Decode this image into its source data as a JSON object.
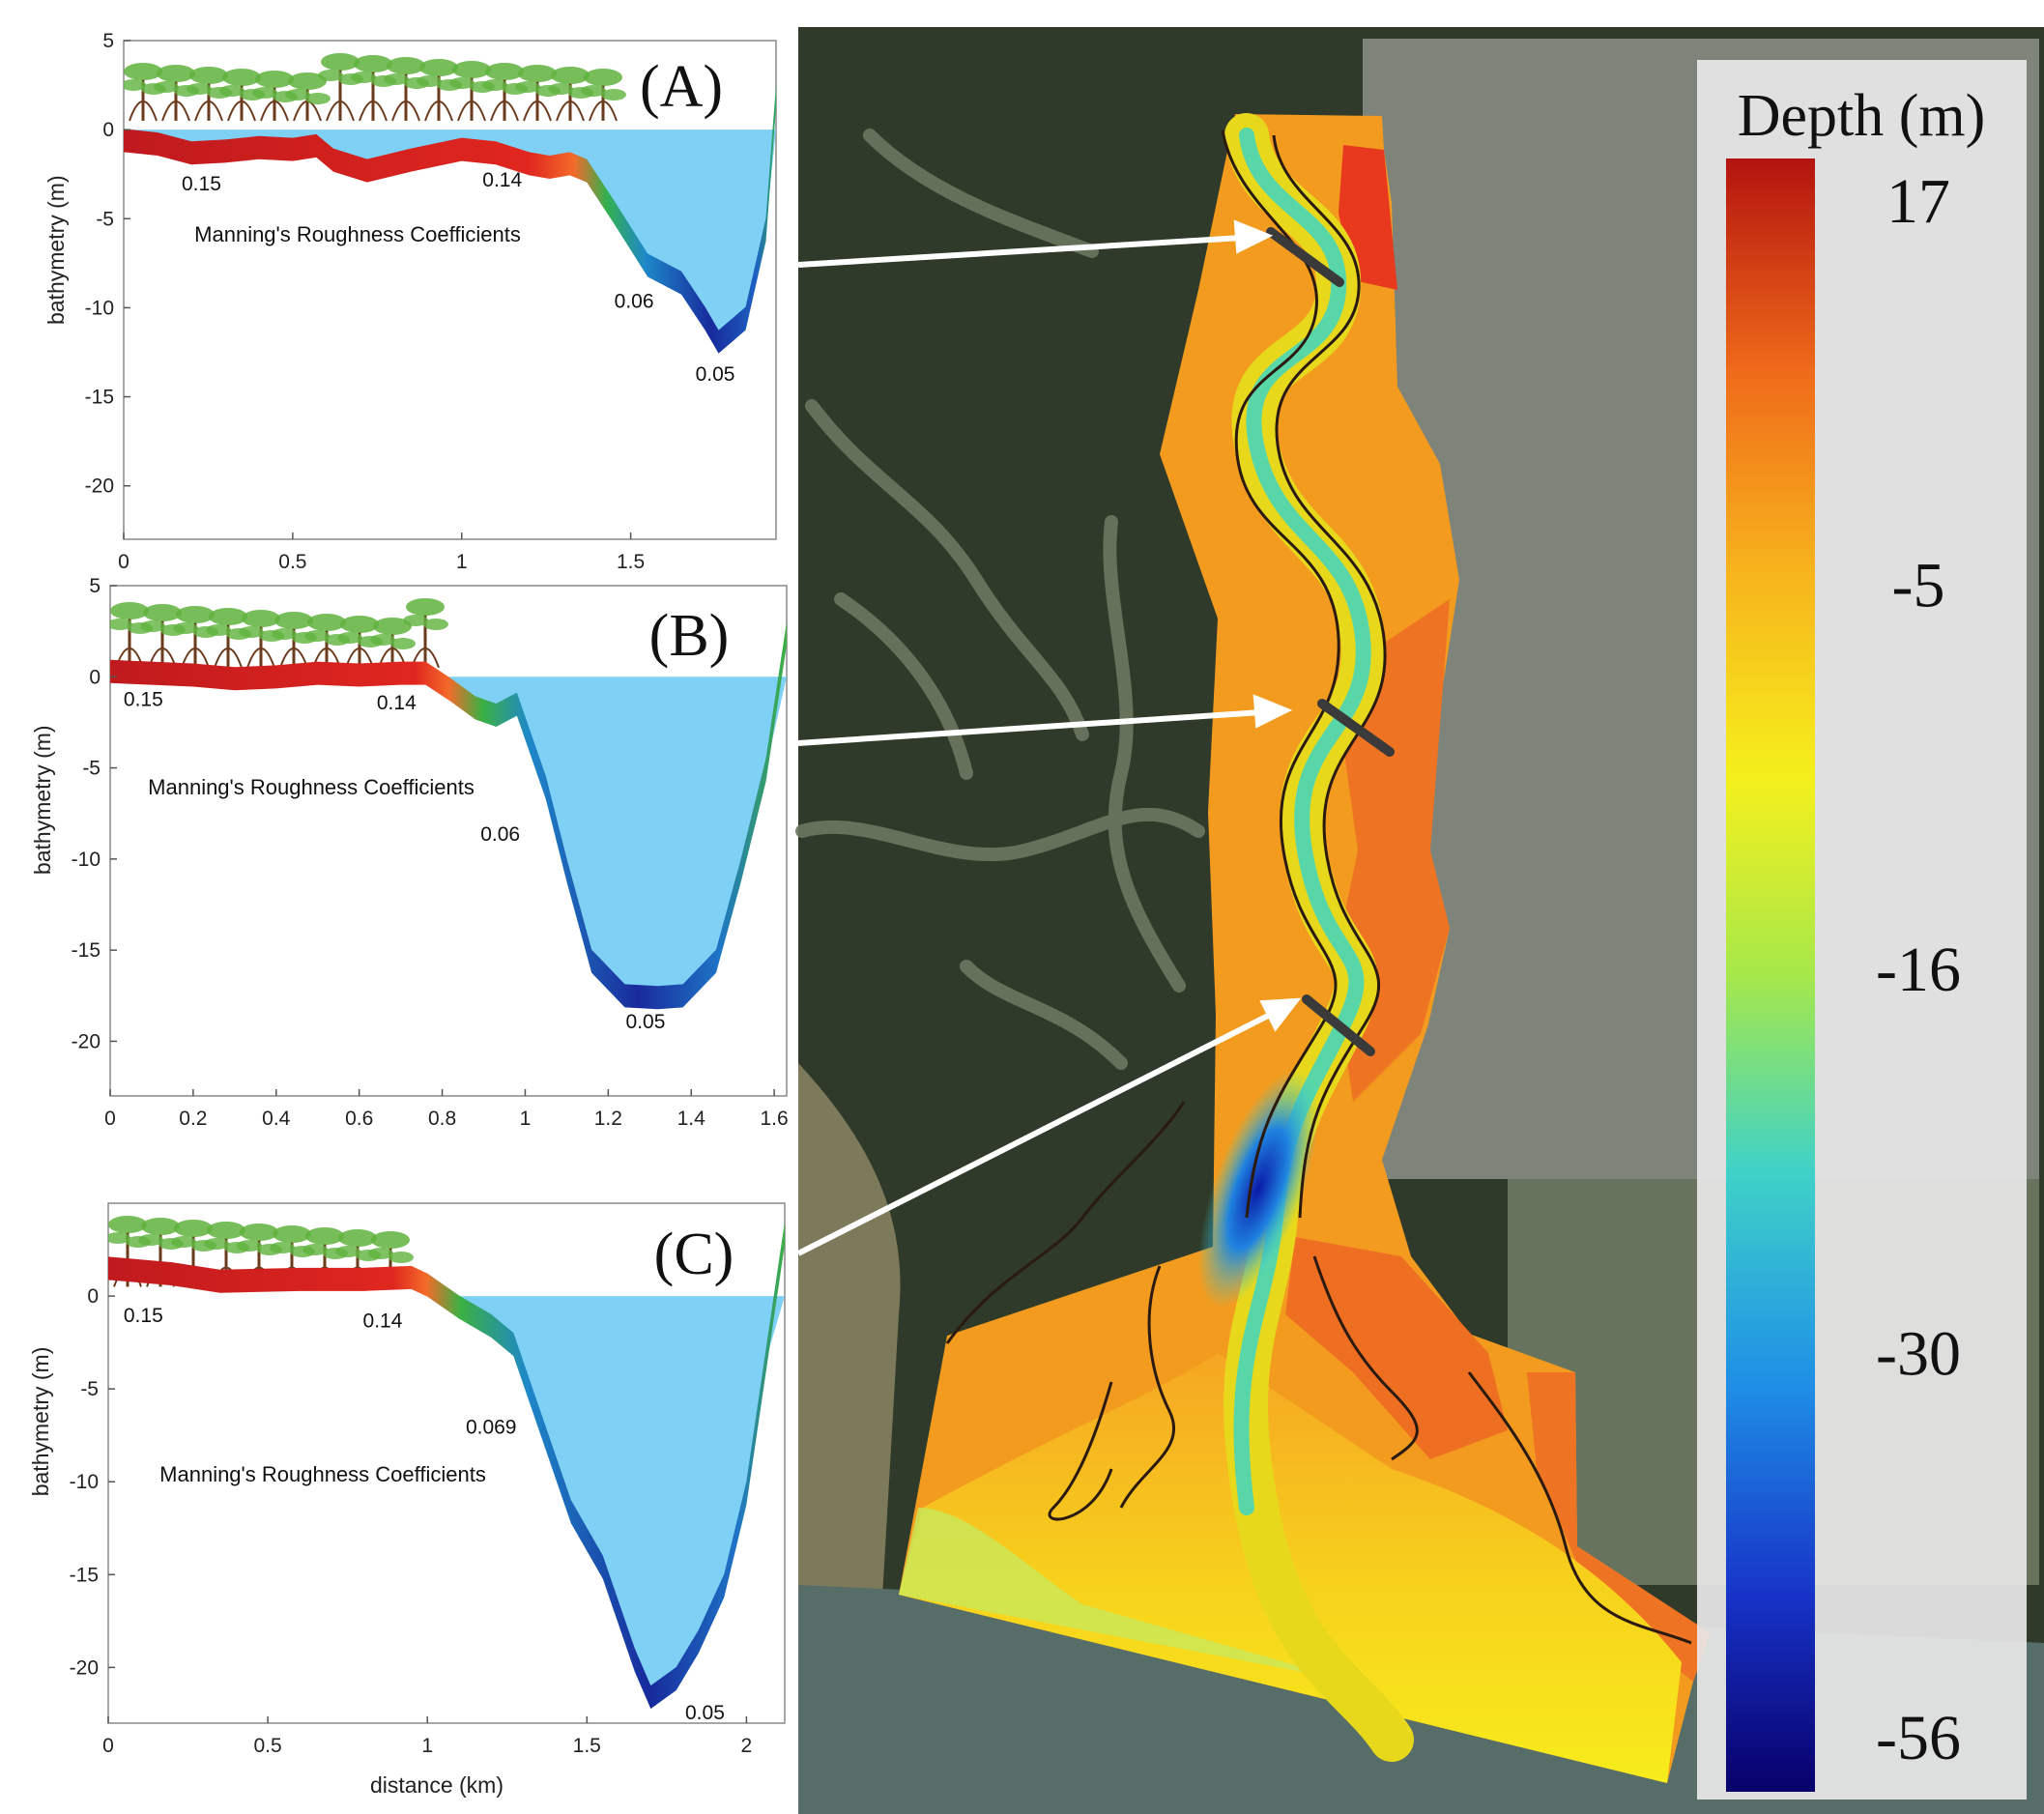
{
  "chart_data": [
    {
      "type": "area",
      "panel_label": "(A)",
      "ylabel": "bathymetry (m)",
      "xlabel": "",
      "annotation": "Manning's Roughness Coefficients",
      "xlim": [
        0,
        1.93
      ],
      "ylim": [
        -23,
        5
      ],
      "xticks": [
        0,
        0.5,
        1,
        1.5
      ],
      "xtick_labels": [
        "0",
        "0.5",
        "1",
        "1.5"
      ],
      "yticks": [
        5,
        0,
        -5,
        -10,
        -15,
        -20
      ],
      "ytick_labels": [
        "5",
        "0",
        "-5",
        "-10",
        "-15",
        "-20"
      ],
      "water_level": 0,
      "profile_x": [
        0,
        0.1,
        0.2,
        0.3,
        0.4,
        0.5,
        0.57,
        0.62,
        0.72,
        0.85,
        1.0,
        1.1,
        1.2,
        1.26,
        1.32,
        1.37,
        1.45,
        1.55,
        1.65,
        1.72,
        1.76,
        1.84,
        1.9,
        1.93
      ],
      "profile_y": [
        -0.5,
        -0.7,
        -1.2,
        -1.1,
        -0.9,
        -1.0,
        -0.8,
        -1.6,
        -2.2,
        -1.6,
        -1.0,
        -1.2,
        -1.8,
        -2.0,
        -1.8,
        -2.2,
        -4.5,
        -7.5,
        -8.5,
        -10.5,
        -11.8,
        -10.5,
        -5.5,
        2.0
      ],
      "coefficients": [
        {
          "label": "0.15",
          "x": 0.23,
          "y": -3.4
        },
        {
          "label": "0.14",
          "x": 1.12,
          "y": -3.2
        },
        {
          "label": "0.06",
          "x": 1.51,
          "y": -10.0
        },
        {
          "label": "0.05",
          "x": 1.75,
          "y": -14.1
        }
      ]
    },
    {
      "type": "area",
      "panel_label": "(B)",
      "ylabel": "bathymetry (m)",
      "xlabel": "",
      "annotation": "Manning's Roughness Coefficients",
      "xlim": [
        0,
        1.63
      ],
      "ylim": [
        -23,
        5
      ],
      "xticks": [
        0,
        0.2,
        0.4,
        0.6,
        0.8,
        1,
        1.2,
        1.4,
        1.6
      ],
      "xtick_labels": [
        "0",
        "0.2",
        "0.4",
        "0.6",
        "0.8",
        "1",
        "1.2",
        "1.4",
        "1.6"
      ],
      "yticks": [
        5,
        0,
        -5,
        -10,
        -15,
        -20
      ],
      "ytick_labels": [
        "5",
        "0",
        "-5",
        "-10",
        "-15",
        "-20"
      ],
      "water_level": 0,
      "profile_x": [
        0,
        0.1,
        0.2,
        0.3,
        0.4,
        0.5,
        0.6,
        0.7,
        0.76,
        0.82,
        0.88,
        0.93,
        0.98,
        1.05,
        1.1,
        1.16,
        1.24,
        1.32,
        1.38,
        1.46,
        1.52,
        1.58,
        1.63
      ],
      "profile_y": [
        0.4,
        0.3,
        0.2,
        0.0,
        0.1,
        0.3,
        0.2,
        0.3,
        0.3,
        -0.6,
        -1.6,
        -2.0,
        -1.4,
        -6.0,
        -10.5,
        -15.5,
        -17.4,
        -17.5,
        -17.4,
        -15.5,
        -10.5,
        -5.0,
        2.5
      ],
      "coefficients": [
        {
          "label": "0.15",
          "x": 0.08,
          "y": -1.6
        },
        {
          "label": "0.14",
          "x": 0.69,
          "y": -1.8
        },
        {
          "label": "0.06",
          "x": 0.94,
          "y": -9.0
        },
        {
          "label": "0.05",
          "x": 1.29,
          "y": -19.3
        }
      ]
    },
    {
      "type": "area",
      "panel_label": "(C)",
      "ylabel": "bathymetry (m)",
      "xlabel": "distance (km)",
      "annotation": "Manning's Roughness Coefficients",
      "xlim": [
        0,
        2.12
      ],
      "ylim": [
        -23,
        5
      ],
      "xticks": [
        0,
        0.5,
        1,
        1.5,
        2
      ],
      "xtick_labels": [
        "0",
        "0.5",
        "1",
        "1.5",
        "2"
      ],
      "yticks": [
        0,
        -5,
        -10,
        -15,
        -20
      ],
      "ytick_labels": [
        "0",
        "-5",
        "-10",
        "-15",
        "-20"
      ],
      "water_level": 0,
      "profile_x": [
        0,
        0.2,
        0.35,
        0.6,
        0.8,
        0.95,
        1.0,
        1.1,
        1.2,
        1.27,
        1.35,
        1.45,
        1.55,
        1.65,
        1.7,
        1.78,
        1.85,
        1.93,
        2.0,
        2.06,
        2.12
      ],
      "profile_y": [
        1.6,
        1.3,
        0.9,
        1.0,
        1.0,
        1.1,
        0.7,
        -0.5,
        -1.5,
        -2.5,
        -6.5,
        -11.5,
        -14.5,
        -19.5,
        -21.5,
        -20.5,
        -18.5,
        -15.5,
        -10.5,
        -3.5,
        3.5
      ],
      "coefficients": [
        {
          "label": "0.15",
          "x": 0.11,
          "y": -1.4
        },
        {
          "label": "0.14",
          "x": 0.86,
          "y": -1.7
        },
        {
          "label": "0.069",
          "x": 1.2,
          "y": -7.4
        },
        {
          "label": "0.05",
          "x": 1.87,
          "y": -22.8
        }
      ]
    }
  ],
  "map": {
    "legend_title": "Depth (m)",
    "legend_ticks": [
      "17",
      "-5",
      "-16",
      "-30",
      "-56"
    ],
    "legend_values": [
      17,
      -5,
      -16,
      -30,
      -56
    ]
  },
  "colors": {
    "water": "#7ed0f4",
    "mangrove_red": "#c4171c",
    "slope_green": "#3cb043",
    "channel_blue": "#1f7fd0",
    "deep_navy": "#1a1a8e",
    "tree": "#5fb33d",
    "trunk": "#6b3b1e"
  }
}
